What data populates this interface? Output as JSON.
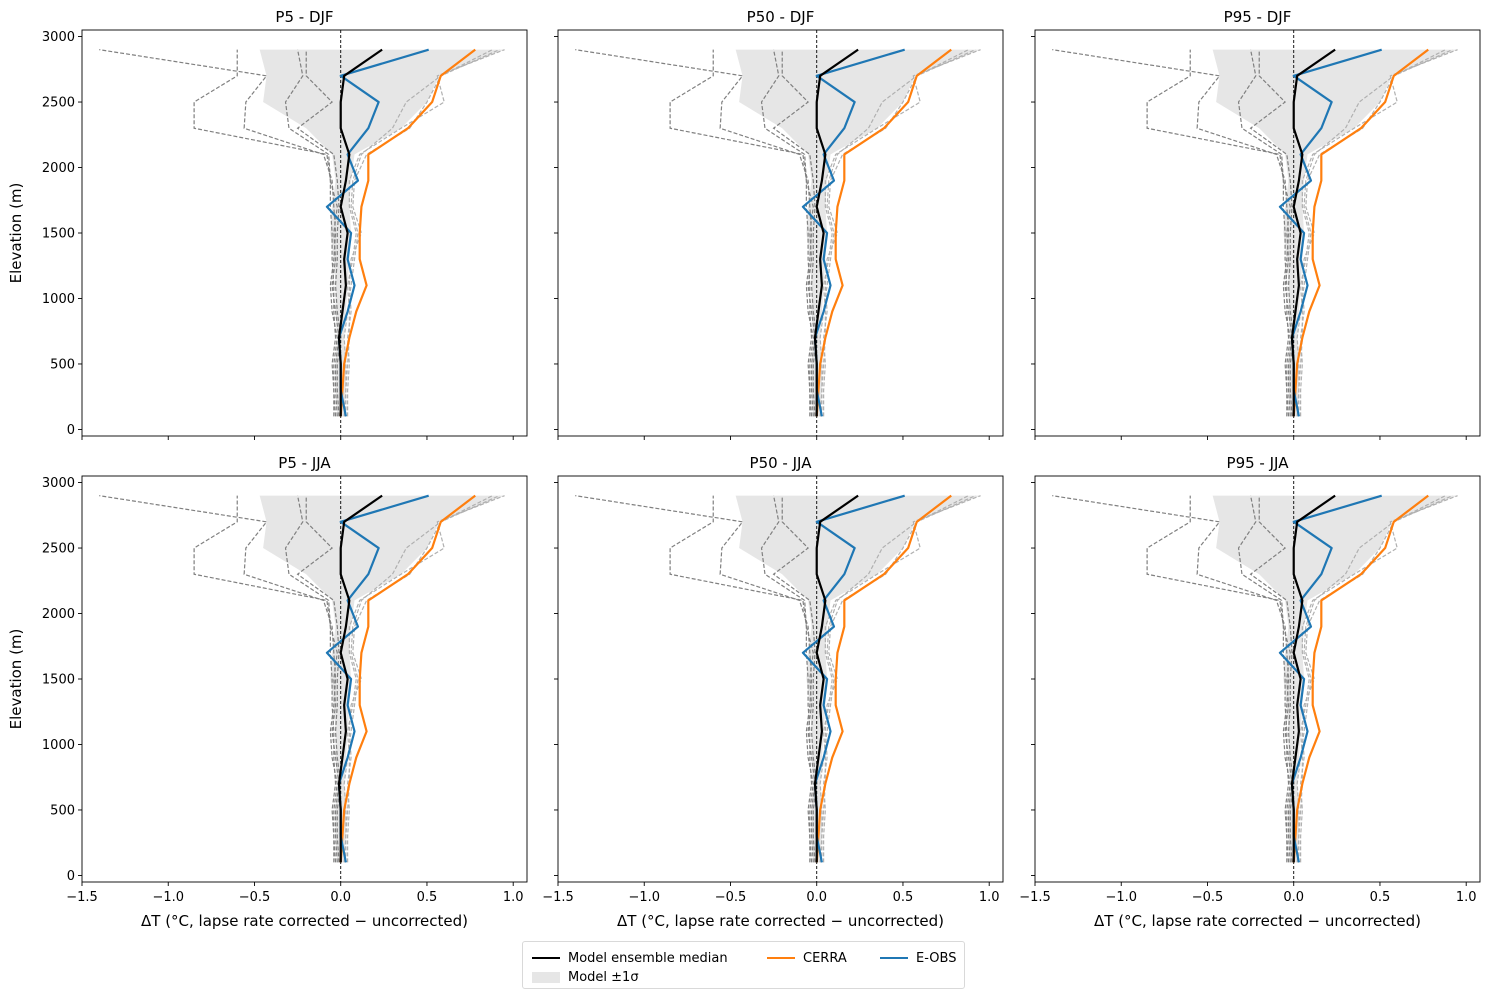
{
  "chart_data": {
    "type": "line",
    "layout": "2x3 small multiples",
    "ylabel": "Elevation (m)",
    "xlabel": "ΔT (°C, lapse rate corrected − uncorrected)",
    "xlim": [
      -1.5,
      1.08
    ],
    "ylim": [
      -50,
      3050
    ],
    "xticks": [
      -1.5,
      -1.0,
      -0.5,
      0.0,
      0.5,
      1.0
    ],
    "xtick_labels": [
      "−1.5",
      "−1.0",
      "−0.5",
      "0.0",
      "0.5",
      "1.0"
    ],
    "yticks": [
      0,
      500,
      1000,
      1500,
      2000,
      2500,
      3000
    ],
    "ytick_labels": [
      "0",
      "500",
      "1000",
      "1500",
      "2000",
      "2500",
      "3000"
    ],
    "zero_line": 0,
    "panels": [
      {
        "title": "P5 - DJF"
      },
      {
        "title": "P50 - DJF"
      },
      {
        "title": "P95 - DJF"
      },
      {
        "title": "P5 - JJA"
      },
      {
        "title": "P50 - JJA"
      },
      {
        "title": "P95 - JJA"
      }
    ],
    "elevation": [
      100,
      300,
      500,
      700,
      900,
      1100,
      1300,
      1500,
      1700,
      1900,
      2100,
      2300,
      2500,
      2700,
      2900
    ],
    "series": [
      {
        "name": "Model ensemble median",
        "color": "#000000",
        "values": [
          0.0,
          0.0,
          0.0,
          -0.01,
          0.01,
          0.03,
          0.02,
          0.04,
          0.0,
          0.03,
          0.05,
          0.0,
          0.0,
          0.02,
          0.24
        ]
      },
      {
        "name": "CERRA",
        "color": "#ff7f0e",
        "values": [
          0.0,
          0.01,
          0.02,
          0.05,
          0.09,
          0.15,
          0.11,
          0.11,
          0.12,
          0.16,
          0.16,
          0.39,
          0.53,
          0.58,
          0.78
        ]
      },
      {
        "name": "E-OBS",
        "color": "#1f77b4",
        "values": [
          0.03,
          0.0,
          0.0,
          -0.01,
          0.04,
          0.08,
          0.04,
          0.06,
          -0.08,
          0.1,
          0.04,
          0.16,
          0.22,
          0.0,
          0.51
        ]
      }
    ],
    "sigma_band": {
      "name": "Model ±1σ",
      "color": "#e6e6e6",
      "low": [
        -0.02,
        -0.03,
        -0.03,
        -0.02,
        -0.03,
        -0.03,
        -0.04,
        -0.06,
        -0.05,
        -0.03,
        -0.05,
        -0.2,
        -0.45,
        -0.43,
        -0.47
      ],
      "high": [
        0.02,
        0.03,
        0.03,
        0.02,
        0.03,
        0.04,
        0.05,
        0.06,
        0.05,
        0.06,
        0.08,
        0.35,
        0.5,
        0.57,
        0.95
      ]
    },
    "members": [
      [
        -0.03,
        -0.04,
        -0.04,
        -0.02,
        -0.05,
        -0.06,
        -0.04,
        -0.03,
        -0.04,
        -0.05,
        -0.1,
        -0.56,
        -0.55,
        -0.43,
        -1.4
      ],
      [
        0.04,
        0.04,
        0.05,
        0.04,
        0.06,
        0.05,
        0.06,
        0.12,
        0.07,
        0.08,
        0.15,
        0.4,
        0.5,
        0.58,
        0.92
      ],
      [
        -0.02,
        -0.03,
        -0.03,
        -0.01,
        -0.03,
        -0.05,
        -0.03,
        -0.04,
        -0.02,
        -0.06,
        -0.07,
        -0.3,
        -0.32,
        -0.22,
        -0.25
      ],
      [
        0.02,
        0.03,
        0.03,
        0.02,
        0.04,
        0.06,
        0.08,
        0.1,
        0.06,
        0.07,
        0.12,
        0.3,
        0.38,
        0.58,
        0.88
      ],
      [
        -0.04,
        -0.04,
        -0.05,
        -0.03,
        -0.04,
        -0.04,
        -0.05,
        -0.05,
        -0.06,
        -0.06,
        -0.08,
        -0.85,
        -0.85,
        -0.6,
        -0.6
      ],
      [
        0.03,
        0.03,
        0.04,
        0.05,
        0.05,
        0.04,
        0.07,
        0.09,
        0.05,
        0.05,
        0.11,
        0.35,
        0.6,
        0.56,
        0.95
      ],
      [
        -0.01,
        -0.02,
        -0.02,
        0.0,
        -0.02,
        -0.03,
        -0.02,
        -0.02,
        -0.01,
        -0.02,
        -0.04,
        -0.25,
        -0.05,
        -0.2,
        -0.2
      ]
    ],
    "legend": {
      "location": "bottom-center",
      "entries": [
        {
          "label": "Model ensemble median",
          "kind": "line",
          "color": "#000000"
        },
        {
          "label": "Model ±1σ",
          "kind": "fill",
          "color": "#e6e6e6"
        },
        {
          "label": "CERRA",
          "kind": "line",
          "color": "#ff7f0e"
        },
        {
          "label": "E-OBS",
          "kind": "line",
          "color": "#1f77b4"
        }
      ]
    }
  }
}
